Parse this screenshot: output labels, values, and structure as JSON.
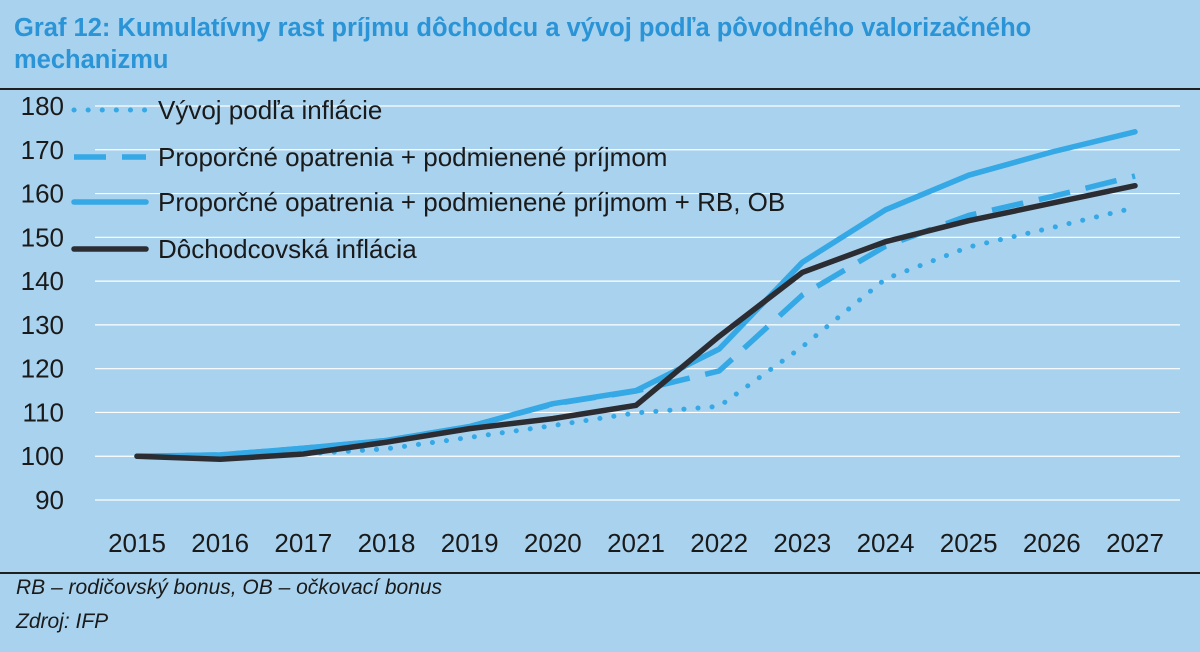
{
  "title": "Graf 12: Kumulatívny rast príjmu dôchodcu a vývoj podľa pôvodného valorizačného mechanizmu",
  "notes": {
    "abbrev": "RB – rodičovský bonus, OB – očkovací bonus",
    "source": "Zdroj: IFP"
  },
  "colors": {
    "background": "#a9d2ee",
    "accent": "#2a94d6",
    "series_blue": "#35a8e6",
    "series_dark": "#2b2d33",
    "gridline": "#ffffff"
  },
  "chart_data": {
    "type": "line",
    "title": "Graf 12: Kumulatívny rast príjmu dôchodcu a vývoj podľa pôvodného valorizačného mechanizmu",
    "xlabel": "",
    "ylabel": "",
    "ylim": [
      90,
      180
    ],
    "yticks": [
      90,
      100,
      110,
      120,
      130,
      140,
      150,
      160,
      170,
      180
    ],
    "grid": true,
    "legend_position": "top-left",
    "categories": [
      "2015",
      "2016",
      "2017",
      "2018",
      "2019",
      "2020",
      "2021",
      "2022",
      "2023",
      "2024",
      "2025",
      "2026",
      "2027"
    ],
    "series": [
      {
        "name": "Vývoj podľa inflácie",
        "style": "dotted",
        "color": "#35a8e6",
        "values": [
          100,
          99.6,
          100.5,
          101.7,
          104.3,
          107.0,
          109.9,
          111.4,
          125.0,
          140.5,
          147.8,
          152.2,
          156.8
        ]
      },
      {
        "name": "Proporčné opatrenia + podmienené príjmom",
        "style": "dashed",
        "color": "#35a8e6",
        "values": [
          100,
          100.3,
          101.8,
          103.6,
          106.8,
          111.9,
          114.9,
          119.5,
          136.8,
          148.0,
          155.0,
          159.3,
          164.0
        ]
      },
      {
        "name": "Proporčné opatrenia + podmienené príjmom + RB, OB",
        "style": "solid",
        "color": "#35a8e6",
        "values": [
          100,
          100.3,
          101.8,
          103.6,
          106.8,
          112.0,
          115.0,
          124.5,
          144.3,
          156.3,
          164.2,
          169.5,
          174.1
        ]
      },
      {
        "name": "Dôchodcovská inflácia",
        "style": "solid",
        "color": "#2b2d33",
        "values": [
          100,
          99.3,
          100.5,
          103.2,
          106.3,
          108.6,
          111.6,
          127.4,
          142.0,
          149.0,
          153.8,
          157.8,
          161.8
        ]
      }
    ]
  }
}
